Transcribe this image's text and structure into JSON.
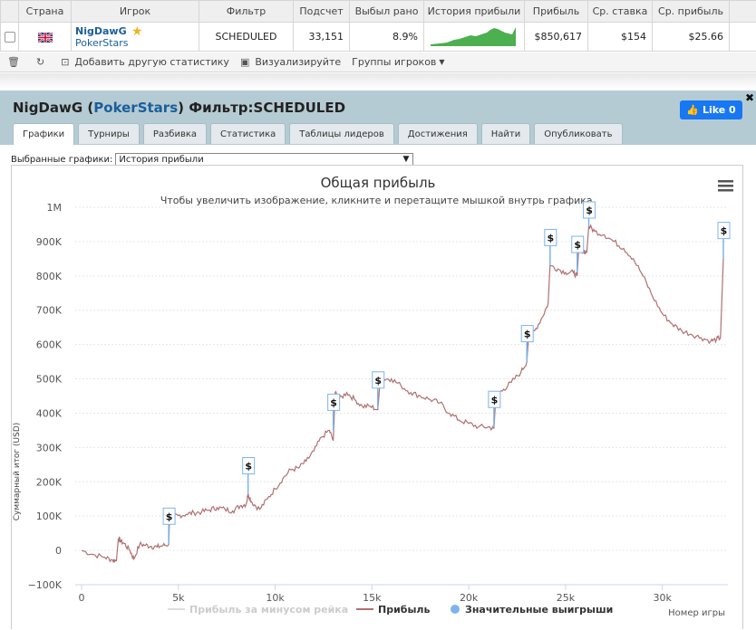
{
  "table": {
    "headers": [
      "",
      "Страна",
      "Игрок",
      "Фильтр",
      "Подсчет",
      "Выбыл рано",
      "История прибыли",
      "Прибыль",
      "Ср. ставка",
      "Ср. прибыль",
      ""
    ],
    "row": {
      "player": "NigDawG",
      "site": "PokerStars",
      "filter": "SCHEDULED",
      "count": "33,151",
      "early_out": "8.9%",
      "profit": "$850,617",
      "avg_stake": "$154",
      "avg_profit": "$25.66"
    }
  },
  "toolbar": {
    "add_stat": "Добавить другую статистику",
    "visualize": "Визуализируйте",
    "groups": "Группы игроков"
  },
  "panel": {
    "player": "NigDawG",
    "site": "PokerStars",
    "filter_label": "Фильтр:",
    "filter_value": "SCHEDULED",
    "like": "Like 0",
    "tabs": [
      "Графики",
      "Турниры",
      "Разбивка",
      "Статистика",
      "Таблицы лидеров",
      "Достижения",
      "Найти",
      "Опубликовать"
    ],
    "select_label": "Выбранные графики:",
    "select_value": "История прибыли"
  },
  "chart_data": {
    "type": "line",
    "title": "Общая прибыль",
    "subtitle": "Чтобы увеличить изображение, кликните и перетащите мышкой внутрь графика.",
    "xlabel": "Номер игры",
    "ylabel": "Суммарный итог (USD)",
    "xlim": [
      0,
      33151
    ],
    "ylim": [
      -100000,
      1000000
    ],
    "y_ticks": [
      "−100K",
      "0",
      "100K",
      "200K",
      "300K",
      "400K",
      "500K",
      "600K",
      "700K",
      "800K",
      "900K",
      "1M"
    ],
    "x_ticks": [
      "0",
      "5k",
      "10k",
      "15k",
      "20k",
      "25k",
      "30k"
    ],
    "series": [
      {
        "name": "Прибыль",
        "color": "#b07070",
        "x": [
          0,
          600,
          1200,
          1600,
          1800,
          1900,
          2000,
          2200,
          2500,
          2700,
          3000,
          3300,
          3600,
          3900,
          4200,
          4500,
          4550,
          4700,
          5000,
          5400,
          5800,
          6200,
          6600,
          7000,
          7400,
          7800,
          8200,
          8500,
          8600,
          8800,
          9200,
          9600,
          10000,
          10400,
          10800,
          11200,
          11600,
          12000,
          12400,
          12800,
          13000,
          13100,
          13300,
          13700,
          14100,
          14500,
          14900,
          15300,
          15400,
          15600,
          16000,
          16500,
          17000,
          17500,
          18000,
          18500,
          19000,
          19500,
          20000,
          20500,
          21000,
          21300,
          21400,
          21800,
          22200,
          22700,
          23000,
          23100,
          23400,
          23800,
          24100,
          24200,
          24600,
          25000,
          25400,
          25600,
          25700,
          25900,
          26100,
          26200,
          26500,
          27000,
          27500,
          28000,
          28500,
          29000,
          29500,
          30000,
          30500,
          31000,
          31500,
          32000,
          32500,
          32800,
          33000,
          33151
        ],
        "values": [
          0,
          -12000,
          -20000,
          -28000,
          -30000,
          35000,
          28000,
          20000,
          0,
          -25000,
          18000,
          15000,
          12000,
          10000,
          14000,
          18000,
          105000,
          100000,
          102000,
          105000,
          110000,
          112000,
          118000,
          125000,
          120000,
          115000,
          130000,
          135000,
          165000,
          140000,
          120000,
          150000,
          180000,
          210000,
          235000,
          240000,
          260000,
          290000,
          330000,
          350000,
          320000,
          460000,
          440000,
          460000,
          440000,
          420000,
          420000,
          410000,
          480000,
          500000,
          500000,
          480000,
          460000,
          450000,
          440000,
          430000,
          400000,
          380000,
          370000,
          360000,
          360000,
          355000,
          450000,
          470000,
          490000,
          520000,
          550000,
          630000,
          640000,
          680000,
          720000,
          830000,
          820000,
          810000,
          810000,
          800000,
          900000,
          870000,
          870000,
          945000,
          930000,
          920000,
          900000,
          880000,
          850000,
          800000,
          740000,
          690000,
          660000,
          640000,
          630000,
          620000,
          610000,
          615000,
          620000,
          850617
        ]
      }
    ],
    "big_wins_x": [
      4500,
      8600,
      13000,
      15300,
      21300,
      23000,
      24200,
      25600,
      26200,
      33151
    ],
    "legend": [
      {
        "label": "Прибыль за минусом рейка",
        "color": "#dddddd"
      },
      {
        "label": "Прибыль",
        "color": "#b07070"
      },
      {
        "label": "Значительные выигрыши",
        "color": "#7cb5ec"
      }
    ]
  }
}
